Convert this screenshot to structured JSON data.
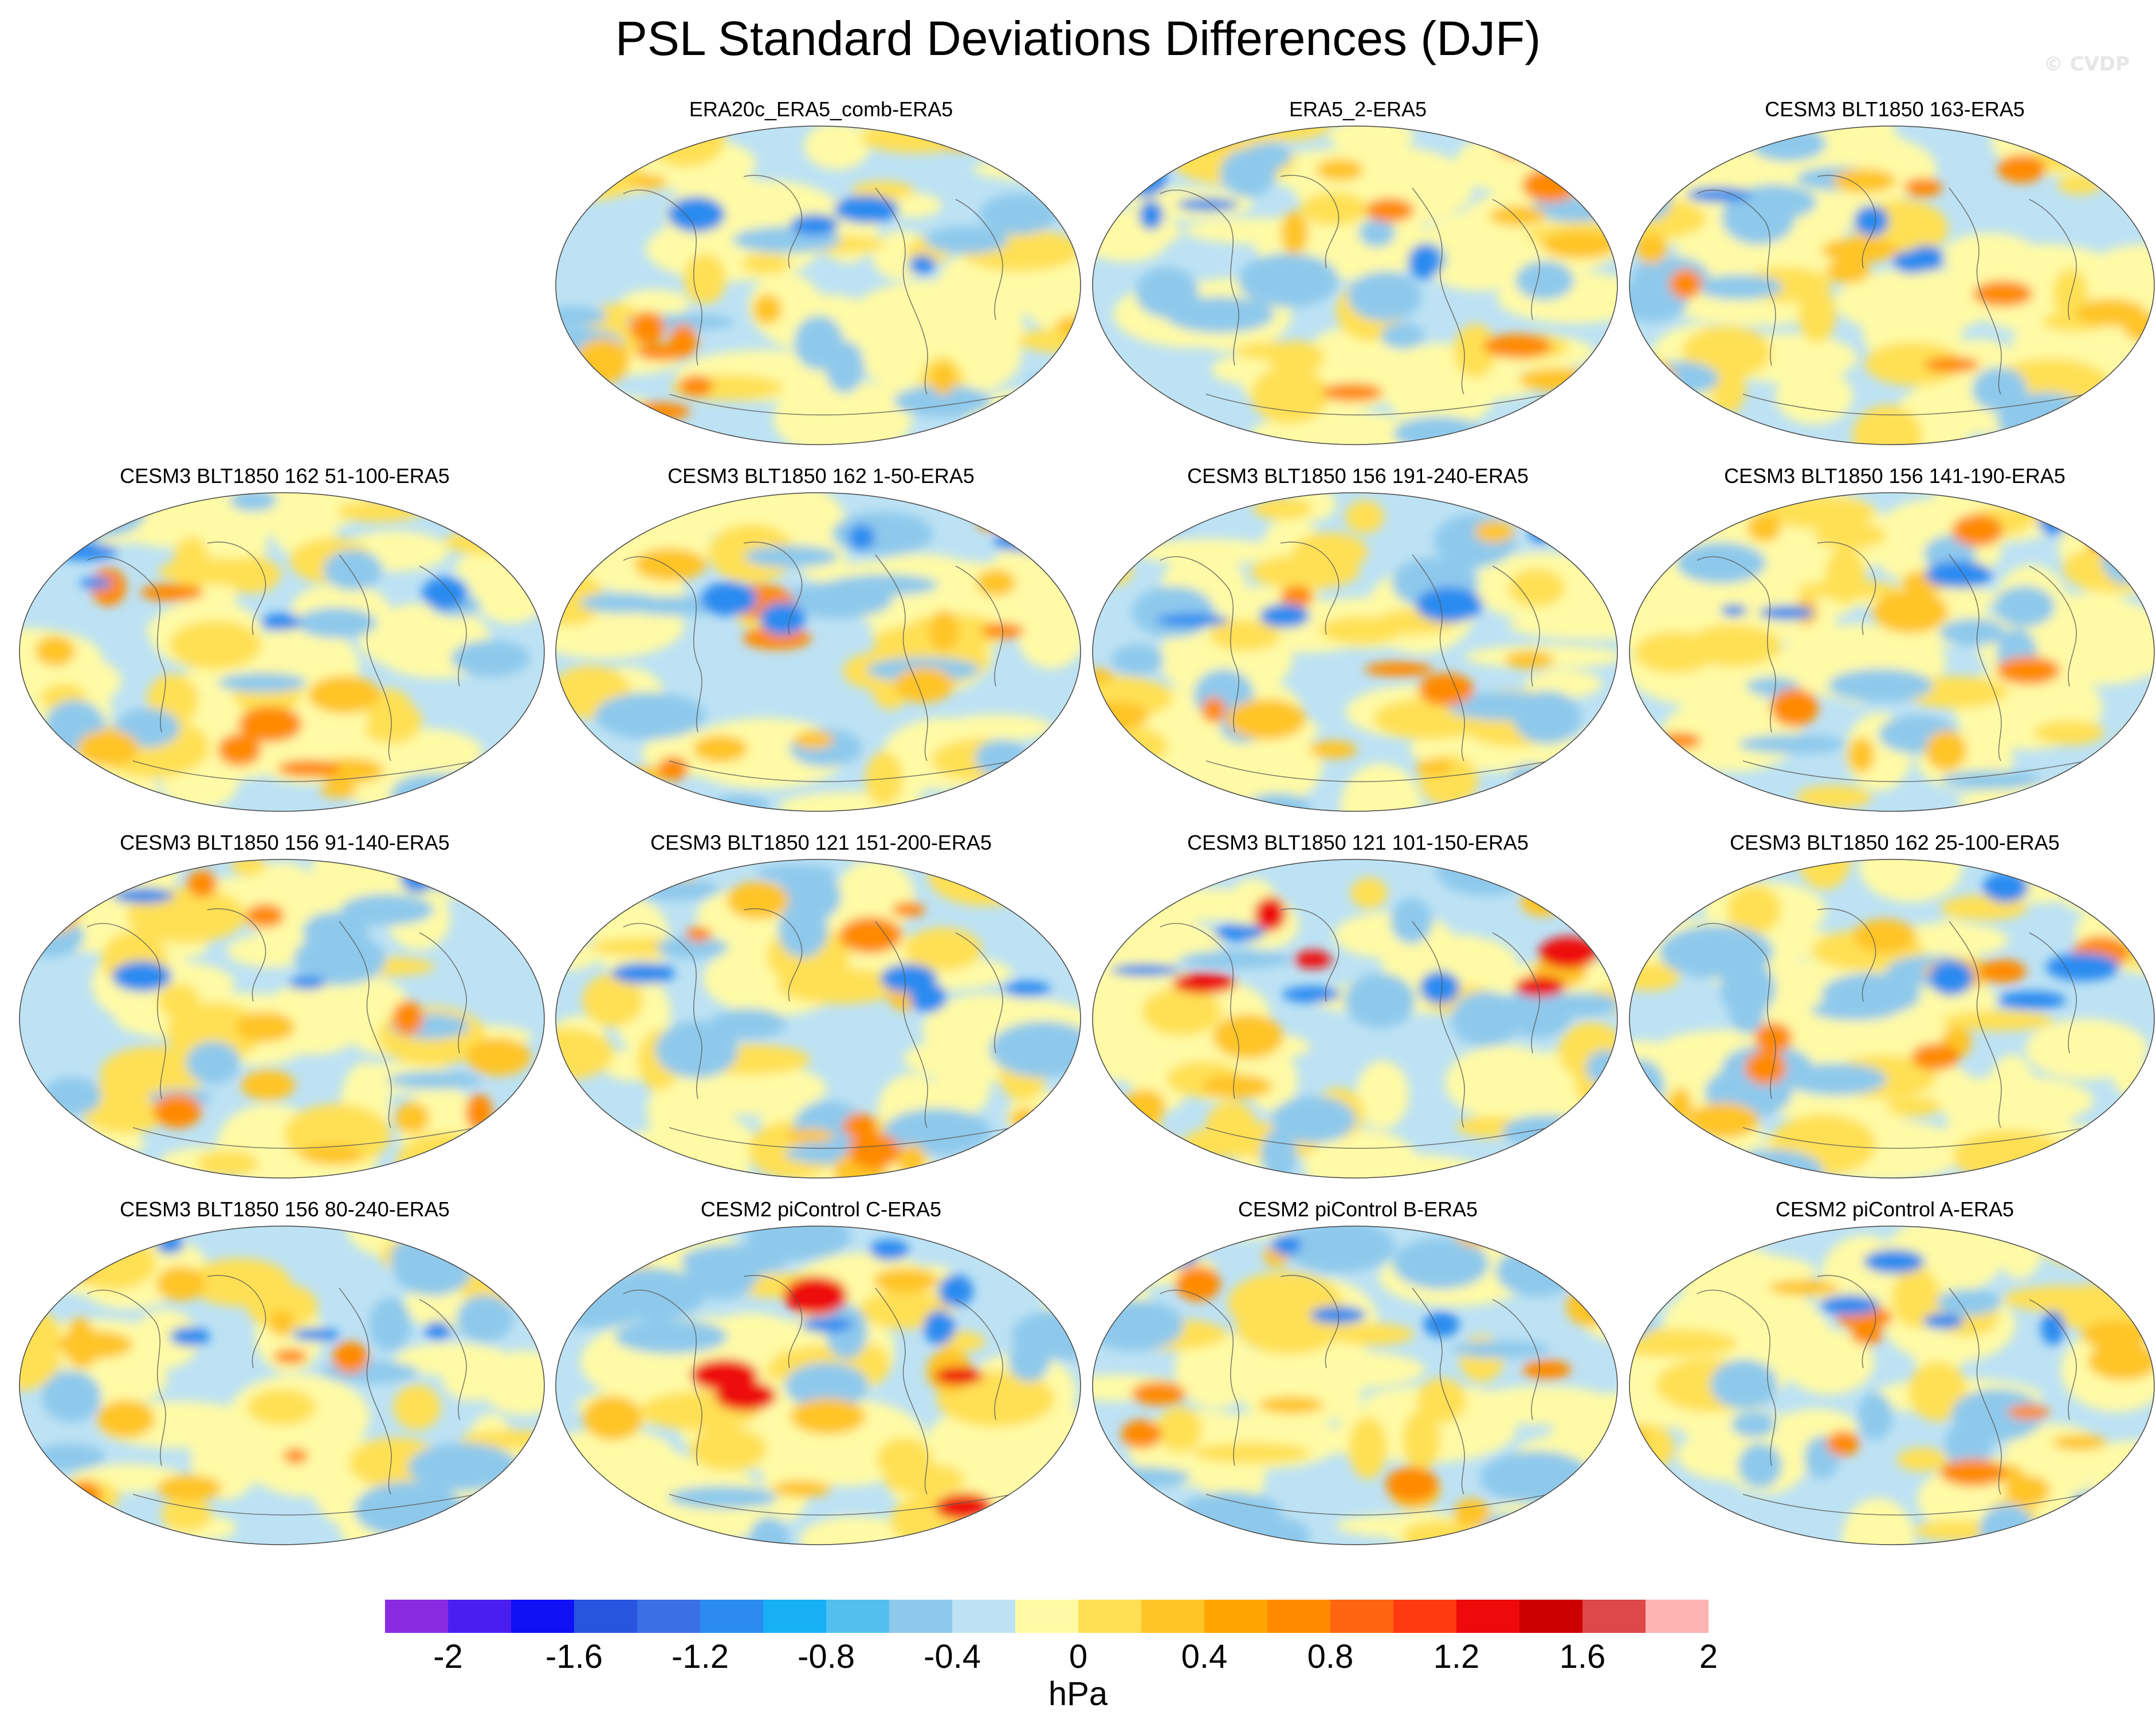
{
  "figure": {
    "title": "PSL Standard Deviations Differences (DJF)",
    "credit": "© CVDP"
  },
  "panels": [
    {
      "label": "ERA20c_ERA5_comb-ERA5"
    },
    {
      "label": "ERA5_2-ERA5"
    },
    {
      "label": "CESM3 BLT1850 163-ERA5"
    },
    {
      "label": "CESM3 BLT1850 162 51-100-ERA5"
    },
    {
      "label": "CESM3 BLT1850 162 1-50-ERA5"
    },
    {
      "label": "CESM3 BLT1850 156 191-240-ERA5"
    },
    {
      "label": "CESM3 BLT1850 156 141-190-ERA5"
    },
    {
      "label": "CESM3 BLT1850 156 91-140-ERA5"
    },
    {
      "label": "CESM3 BLT1850 121 151-200-ERA5"
    },
    {
      "label": "CESM3 BLT1850 121 101-150-ERA5"
    },
    {
      "label": "CESM3 BLT1850 162 25-100-ERA5"
    },
    {
      "label": "CESM3 BLT1850 156 80-240-ERA5"
    },
    {
      "label": "CESM2 piControl C-ERA5"
    },
    {
      "label": "CESM2 piControl B-ERA5"
    },
    {
      "label": "CESM2 piControl A-ERA5"
    }
  ],
  "colorbar": {
    "units": "hPa",
    "colors": [
      "#8a2be2",
      "#4b1ef0",
      "#1010f5",
      "#2855e0",
      "#3a6fe6",
      "#2b8bf0",
      "#18b0f5",
      "#52c0ee",
      "#8ec9ec",
      "#bde2f4",
      "#fffaa6",
      "#ffe055",
      "#ffc425",
      "#ffa500",
      "#ff8a00",
      "#ff6410",
      "#ff3a10",
      "#ee0a0a",
      "#cc0000",
      "#dd4848",
      "#ffb3b3"
    ],
    "tick_labels": [
      "-2",
      "-1.6",
      "-1.2",
      "-0.8",
      "-0.4",
      "0",
      "0.4",
      "0.8",
      "1.2",
      "1.6",
      "2"
    ]
  }
}
